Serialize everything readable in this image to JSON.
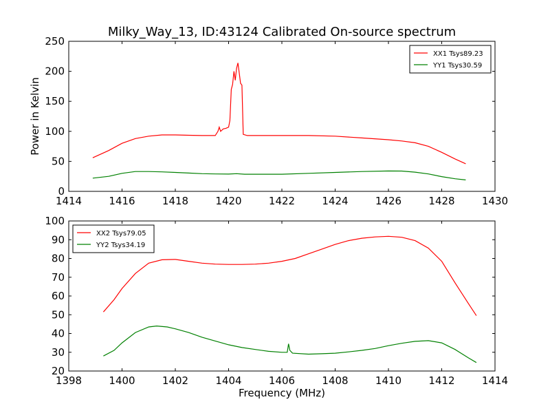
{
  "figure": {
    "title": "Milky_Way_13, ID:43124 Calibrated On-source spectrum"
  },
  "colors": {
    "xx": "#ff0000",
    "yy": "#008000"
  },
  "chart_data": [
    {
      "type": "line",
      "ylabel": "Power in Kelvin",
      "xlabel": "",
      "xlim": [
        1414,
        1430
      ],
      "ylim": [
        0,
        250
      ],
      "xticks": [
        1414,
        1416,
        1418,
        1420,
        1422,
        1424,
        1426,
        1428,
        1430
      ],
      "yticks": [
        0,
        50,
        100,
        150,
        200,
        250
      ],
      "legend_position": "top-right",
      "series": [
        {
          "name": "XX1 Tsys89.23",
          "color": "#ff0000",
          "points": [
            [
              1414.9,
              56
            ],
            [
              1415.5,
              68
            ],
            [
              1416,
              80
            ],
            [
              1416.5,
              88
            ],
            [
              1417,
              92
            ],
            [
              1417.5,
              94
            ],
            [
              1418,
              94
            ],
            [
              1418.5,
              93.5
            ],
            [
              1419,
              93
            ],
            [
              1419.5,
              93
            ],
            [
              1419.6,
              100
            ],
            [
              1419.65,
              107
            ],
            [
              1419.7,
              100
            ],
            [
              1419.8,
              104
            ],
            [
              1419.9,
              105
            ],
            [
              1420,
              107
            ],
            [
              1420.05,
              118
            ],
            [
              1420.1,
              170
            ],
            [
              1420.15,
              178
            ],
            [
              1420.2,
              200
            ],
            [
              1420.25,
              185
            ],
            [
              1420.3,
              205
            ],
            [
              1420.35,
              214
            ],
            [
              1420.4,
              197
            ],
            [
              1420.45,
              180
            ],
            [
              1420.5,
              177
            ],
            [
              1420.55,
              95
            ],
            [
              1420.7,
              93
            ],
            [
              1421,
              93
            ],
            [
              1422,
              93
            ],
            [
              1423,
              93
            ],
            [
              1424,
              92
            ],
            [
              1425,
              89
            ],
            [
              1426,
              86
            ],
            [
              1426.5,
              84
            ],
            [
              1427,
              81
            ],
            [
              1427.5,
              75
            ],
            [
              1428,
              65
            ],
            [
              1428.5,
              54
            ],
            [
              1428.9,
              46
            ]
          ]
        },
        {
          "name": "YY1 Tsys30.59",
          "color": "#008000",
          "points": [
            [
              1414.9,
              22
            ],
            [
              1415.5,
              25
            ],
            [
              1416,
              30
            ],
            [
              1416.5,
              33
            ],
            [
              1417,
              33
            ],
            [
              1417.5,
              32.5
            ],
            [
              1418,
              31.5
            ],
            [
              1418.5,
              30.5
            ],
            [
              1419,
              29.5
            ],
            [
              1419.5,
              29
            ],
            [
              1420,
              28.8
            ],
            [
              1420.3,
              29.5
            ],
            [
              1420.6,
              28.5
            ],
            [
              1421,
              28.5
            ],
            [
              1422,
              28.5
            ],
            [
              1423,
              30
            ],
            [
              1424,
              31.5
            ],
            [
              1425,
              33
            ],
            [
              1426,
              34
            ],
            [
              1426.5,
              33.8
            ],
            [
              1427,
              32
            ],
            [
              1427.5,
              29
            ],
            [
              1428,
              24.5
            ],
            [
              1428.5,
              21
            ],
            [
              1428.9,
              19
            ]
          ]
        }
      ]
    },
    {
      "type": "line",
      "ylabel": "",
      "xlabel": "Frequency (MHz)",
      "xlim": [
        1398,
        1414
      ],
      "ylim": [
        20,
        100
      ],
      "xticks": [
        1398,
        1400,
        1402,
        1404,
        1406,
        1408,
        1410,
        1412,
        1414
      ],
      "yticks": [
        20,
        30,
        40,
        50,
        60,
        70,
        80,
        90,
        100
      ],
      "legend_position": "top-left",
      "series": [
        {
          "name": "XX2 Tsys79.05",
          "color": "#ff0000",
          "points": [
            [
              1399.3,
              51.5
            ],
            [
              1399.7,
              58
            ],
            [
              1400,
              64
            ],
            [
              1400.5,
              72
            ],
            [
              1401,
              77.5
            ],
            [
              1401.5,
              79.3
            ],
            [
              1402,
              79.5
            ],
            [
              1402.5,
              78.5
            ],
            [
              1403,
              77.5
            ],
            [
              1403.5,
              77
            ],
            [
              1404,
              76.8
            ],
            [
              1404.5,
              76.8
            ],
            [
              1405,
              77
            ],
            [
              1405.5,
              77.5
            ],
            [
              1406,
              78.5
            ],
            [
              1406.5,
              80
            ],
            [
              1407,
              82.5
            ],
            [
              1407.5,
              85
            ],
            [
              1408,
              87.5
            ],
            [
              1408.5,
              89.5
            ],
            [
              1409,
              90.8
            ],
            [
              1409.5,
              91.5
            ],
            [
              1410,
              91.8
            ],
            [
              1410.5,
              91.3
            ],
            [
              1411,
              89.5
            ],
            [
              1411.5,
              85.5
            ],
            [
              1412,
              78.5
            ],
            [
              1412.5,
              67
            ],
            [
              1413,
              56
            ],
            [
              1413.3,
              49.5
            ]
          ]
        },
        {
          "name": "YY2 Tsys34.19",
          "color": "#008000",
          "points": [
            [
              1399.3,
              28
            ],
            [
              1399.7,
              31
            ],
            [
              1400,
              35
            ],
            [
              1400.5,
              40.5
            ],
            [
              1401,
              43.5
            ],
            [
              1401.3,
              44
            ],
            [
              1401.7,
              43.5
            ],
            [
              1402,
              42.5
            ],
            [
              1402.5,
              40.5
            ],
            [
              1403,
              38
            ],
            [
              1403.5,
              36
            ],
            [
              1404,
              34
            ],
            [
              1404.5,
              32.5
            ],
            [
              1405,
              31.5
            ],
            [
              1405.5,
              30.5
            ],
            [
              1406,
              30
            ],
            [
              1406.2,
              30
            ],
            [
              1406.25,
              34.5
            ],
            [
              1406.3,
              31
            ],
            [
              1406.4,
              29.5
            ],
            [
              1407,
              29
            ],
            [
              1407.5,
              29.2
            ],
            [
              1408,
              29.5
            ],
            [
              1408.5,
              30.2
            ],
            [
              1409,
              31
            ],
            [
              1409.5,
              32
            ],
            [
              1410,
              33.5
            ],
            [
              1410.5,
              34.8
            ],
            [
              1411,
              35.8
            ],
            [
              1411.5,
              36.2
            ],
            [
              1412,
              35
            ],
            [
              1412.5,
              31.5
            ],
            [
              1413,
              27
            ],
            [
              1413.3,
              24.5
            ]
          ]
        }
      ]
    }
  ]
}
